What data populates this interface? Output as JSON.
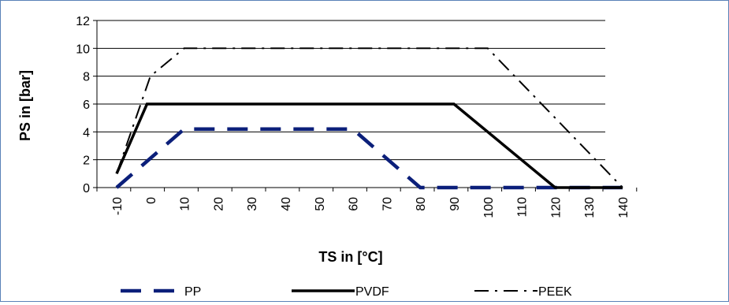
{
  "chart_data": {
    "type": "line",
    "xlabel": "TS in [°C]",
    "ylabel": "PS in [bar]",
    "x_ticks": [
      "-10",
      "0",
      "10",
      "20",
      "30",
      "40",
      "50",
      "60",
      "70",
      "80",
      "90",
      "100",
      "110",
      "120",
      "130",
      "140"
    ],
    "y_ticks": [
      "0",
      "2",
      "4",
      "6",
      "8",
      "10",
      "12"
    ],
    "xlim": [
      -10,
      140
    ],
    "ylim": [
      0,
      12
    ],
    "grid": "horizontal",
    "legend": "bottom",
    "series": [
      {
        "name": "PP",
        "color": "#0b1f7a",
        "dash": "long-dash",
        "points": [
          [
            -10,
            0
          ],
          [
            10,
            4.2
          ],
          [
            60,
            4.2
          ],
          [
            80,
            0
          ],
          [
            140,
            0
          ]
        ]
      },
      {
        "name": "PVDF",
        "color": "#000000",
        "dash": "solid",
        "points": [
          [
            -10,
            1
          ],
          [
            -1,
            6
          ],
          [
            90,
            6
          ],
          [
            120,
            0
          ],
          [
            140,
            0
          ]
        ]
      },
      {
        "name": "PEEK",
        "color": "#000000",
        "dash": "dash-dot",
        "points": [
          [
            -10,
            1
          ],
          [
            0,
            8
          ],
          [
            10,
            10
          ],
          [
            100,
            10
          ],
          [
            140,
            0
          ]
        ]
      }
    ]
  }
}
